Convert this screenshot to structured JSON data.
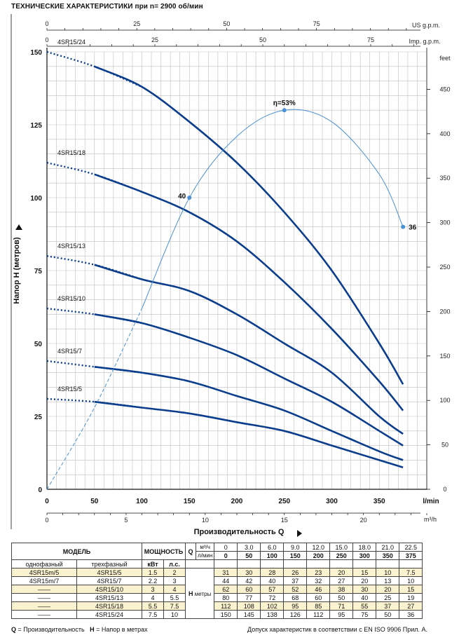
{
  "title": "ТЕХНИЧЕСКИЕ ХАРАКТЕРИСТИКИ при n= 2900 об/мин",
  "chart_data": {
    "type": "line",
    "x": [
      0,
      50,
      100,
      150,
      200,
      250,
      300,
      350
    ],
    "x_ticks": [
      "0",
      "50",
      "100",
      "150",
      "200",
      "250",
      "300",
      "350"
    ],
    "x_unit": "l/min",
    "xlim": [
      0,
      400
    ],
    "ylim": [
      0,
      150
    ],
    "y_ticks": [
      "0",
      "25",
      "50",
      "75",
      "100",
      "125",
      "150"
    ],
    "ylabel": "Напор H  (метров)",
    "xlabel": "Производительность  Q",
    "right_axis": {
      "unit": "feet",
      "ticks": [
        "0",
        "50",
        "100",
        "150",
        "200",
        "250",
        "300",
        "350",
        "400",
        "450"
      ]
    },
    "top_axis_us": {
      "unit": "US g.p.m.",
      "ticks": [
        "0",
        "25",
        "50",
        "75"
      ]
    },
    "top_axis_imp": {
      "unit": "Imp. g.p.m.",
      "ticks": [
        "0",
        "25",
        "50",
        "75"
      ]
    },
    "bottom_axis_m3h": {
      "unit": "m³/h",
      "ticks": [
        "0",
        "5",
        "10",
        "15",
        "20"
      ]
    },
    "series": [
      {
        "name": "4SR15/24",
        "x": [
          0,
          50,
          100,
          150,
          200,
          250,
          300,
          350,
          375
        ],
        "values": [
          150,
          145,
          138,
          126,
          112,
          95,
          75,
          50,
          36
        ]
      },
      {
        "name": "4SR15/18",
        "x": [
          0,
          50,
          100,
          150,
          200,
          250,
          300,
          350,
          375
        ],
        "values": [
          112,
          108,
          102,
          95,
          85,
          71,
          55,
          37,
          27
        ]
      },
      {
        "name": "4SR15/13",
        "x": [
          0,
          50,
          100,
          150,
          200,
          250,
          300,
          350,
          375
        ],
        "values": [
          80,
          77,
          72,
          68,
          60,
          50,
          40,
          25,
          19
        ]
      },
      {
        "name": "4SR15/10",
        "x": [
          0,
          50,
          100,
          150,
          200,
          250,
          300,
          350,
          375
        ],
        "values": [
          62,
          60,
          57,
          52,
          46,
          38,
          30,
          20,
          15
        ]
      },
      {
        "name": "4SR15/7",
        "x": [
          0,
          50,
          100,
          150,
          200,
          250,
          300,
          350,
          375
        ],
        "values": [
          44,
          42,
          40,
          37,
          32,
          27,
          20,
          13,
          10
        ]
      },
      {
        "name": "4SR15/5",
        "x": [
          0,
          50,
          100,
          150,
          200,
          250,
          300,
          350,
          375
        ],
        "values": [
          31,
          30,
          28,
          26,
          23,
          20,
          15,
          10,
          7.5
        ]
      }
    ],
    "efficiency_curve": {
      "x": [
        0,
        50,
        100,
        150,
        200,
        250,
        300,
        350,
        375
      ],
      "values": [
        0,
        28,
        62,
        100,
        121,
        130,
        126,
        108,
        90
      ],
      "markers": [
        {
          "x": 150,
          "y": 100,
          "label": "40"
        },
        {
          "x": 250,
          "y": 130,
          "label": "η=53%"
        },
        {
          "x": 375,
          "y": 90,
          "label": "36"
        }
      ]
    }
  },
  "table": {
    "model_header": "МОДЕЛЬ",
    "power_header": "МОЩНОСТЬ",
    "single_phase": "однофазный",
    "three_phase": "трехфазный",
    "kw": "кВт",
    "hp": "л.с.",
    "q_label": "Q",
    "m3h": "м³/ч",
    "lmin": "л/мин",
    "h_label": "H",
    "h_unit": "метры",
    "flow_m3h": [
      "0",
      "3.0",
      "6.0",
      "9.0",
      "12.0",
      "15.0",
      "18.0",
      "21.0",
      "22.5"
    ],
    "flow_lmin": [
      "0",
      "50",
      "100",
      "150",
      "200",
      "250",
      "300",
      "350",
      "375"
    ],
    "rows": [
      {
        "single": "4SR15m/5",
        "three": "4SR15/5",
        "kw": "1.5",
        "hp": "2",
        "h": [
          "31",
          "30",
          "28",
          "26",
          "23",
          "20",
          "15",
          "10",
          "7.5"
        ],
        "hl": true
      },
      {
        "single": "4SR15m/7",
        "three": "4SR15/7",
        "kw": "2.2",
        "hp": "3",
        "h": [
          "44",
          "42",
          "40",
          "37",
          "32",
          "27",
          "20",
          "13",
          "10"
        ],
        "hl": false
      },
      {
        "single": "——",
        "three": "4SR15/10",
        "kw": "3",
        "hp": "4",
        "h": [
          "62",
          "60",
          "57",
          "52",
          "46",
          "38",
          "30",
          "20",
          "15"
        ],
        "hl": true
      },
      {
        "single": "——",
        "three": "4SR15/13",
        "kw": "4",
        "hp": "5.5",
        "h": [
          "80",
          "77",
          "72",
          "68",
          "60",
          "50",
          "40",
          "25",
          "19"
        ],
        "hl": false
      },
      {
        "single": "——",
        "three": "4SR15/18",
        "kw": "5.5",
        "hp": "7.5",
        "h": [
          "112",
          "108",
          "102",
          "95",
          "85",
          "71",
          "55",
          "37",
          "27"
        ],
        "hl": true
      },
      {
        "single": "——",
        "three": "4SR15/24",
        "kw": "7.5",
        "hp": "10",
        "h": [
          "150",
          "145",
          "138",
          "126",
          "112",
          "95",
          "75",
          "50",
          "36"
        ],
        "hl": false
      }
    ]
  },
  "footer": {
    "left_q": "Q",
    "left_q_text": " = Производительность",
    "left_h": "H",
    "left_h_text": " = Напор в метрах",
    "right": "Допуск характеристик в соответствии с EN ISO 9906 Прил.  A."
  },
  "colors": {
    "curve": "#0a3d8c",
    "efficiency": "#4a90d4",
    "grid": "#bfbfbf",
    "highlight": "#fbf3cf"
  }
}
